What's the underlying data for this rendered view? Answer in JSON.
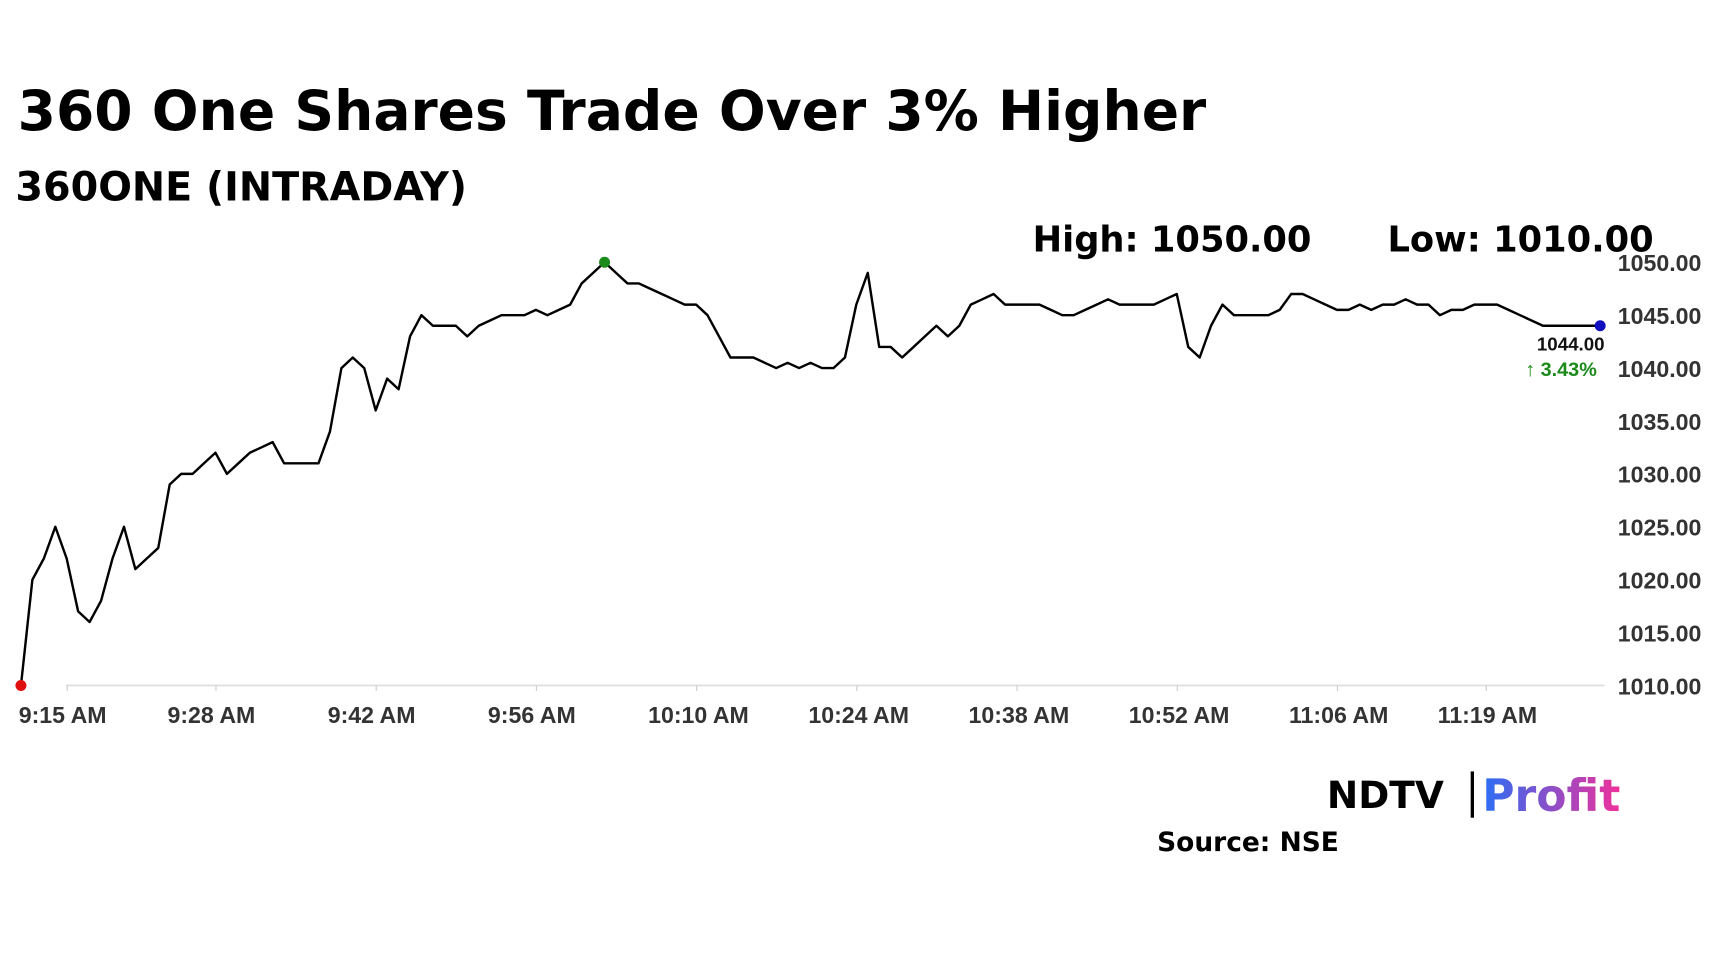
{
  "chart_data": {
    "type": "line",
    "title": "360 One Shares Trade Over 3% Higher",
    "subtitle": "360ONE (INTRADAY)",
    "high_label": "High: 1050.00",
    "low_label": "Low: 1010.00",
    "last_label": "1044.00",
    "change_label": "↑ 3.43%",
    "source": "Source: NSE",
    "logo": [
      "NDTV",
      "Profit"
    ],
    "x": [
      555,
      556,
      557,
      558,
      559,
      560,
      561,
      562,
      563,
      564,
      565,
      566,
      567,
      568,
      569,
      570,
      571,
      572,
      573,
      574,
      575,
      576,
      577,
      578,
      579,
      580,
      581,
      582,
      583,
      584,
      585,
      586,
      587,
      588,
      589,
      590,
      591,
      592,
      593,
      594,
      595,
      596,
      597,
      598,
      599,
      600,
      601,
      602,
      603,
      604,
      605,
      606,
      607,
      608,
      609,
      610,
      611,
      612,
      613,
      614,
      615,
      616,
      617,
      618,
      619,
      620,
      621,
      622,
      623,
      624,
      625,
      626,
      627,
      628,
      629,
      630,
      631,
      632,
      633,
      634,
      635,
      636,
      637,
      638,
      639,
      640,
      641,
      642,
      643,
      644,
      645,
      646,
      647,
      648,
      649,
      650,
      651,
      652,
      653,
      654,
      655,
      656,
      657,
      658,
      659,
      660,
      661,
      662,
      663,
      664,
      665,
      666,
      667,
      668,
      669,
      670,
      671,
      672,
      673,
      674,
      675,
      676,
      677,
      678,
      679,
      680,
      681,
      682,
      683,
      684,
      685,
      686,
      687,
      688,
      689,
      690,
      691,
      692,
      693
    ],
    "series": [
      {
        "color": "#000000",
        "values": [
          1010,
          1020,
          1022,
          1025,
          1022,
          1017,
          1016,
          1018,
          1022,
          1025,
          1021,
          1022,
          1023,
          1029,
          1030,
          1030,
          1031,
          1032,
          1030,
          1031,
          1032,
          1032.5,
          1033,
          1031,
          1031,
          1031,
          1031,
          1034,
          1040,
          1041,
          1040,
          1036,
          1039,
          1038,
          1043,
          1045,
          1044,
          1044,
          1044,
          1043,
          1044,
          1044.5,
          1045,
          1045,
          1045,
          1045.5,
          1045,
          1045.5,
          1046,
          1048,
          1049,
          1050,
          1049,
          1048,
          1048,
          1047.5,
          1047,
          1046.5,
          1046,
          1046,
          1045,
          1043,
          1041,
          1041,
          1041,
          1040.5,
          1040,
          1040.5,
          1040,
          1040.5,
          1040,
          1040,
          1041,
          1046,
          1049,
          1042,
          1042,
          1041,
          1042,
          1043,
          1044,
          1043,
          1044,
          1046,
          1046.5,
          1047,
          1046,
          1046,
          1046,
          1046,
          1045.5,
          1045,
          1045,
          1045.5,
          1046,
          1046.5,
          1046,
          1046,
          1046,
          1046,
          1046.5,
          1047,
          1042,
          1041,
          1044,
          1046,
          1045,
          1045,
          1045,
          1045,
          1045.5,
          1047,
          1047,
          1046.5,
          1046,
          1045.5,
          1045.5,
          1046,
          1045.5,
          1046,
          1046,
          1046.5,
          1046,
          1046,
          1045,
          1045.5,
          1045.5,
          1046,
          1046,
          1046,
          1045.5,
          1045,
          1044.5,
          1044,
          1044,
          1044,
          1044,
          1044,
          1044
        ]
      }
    ],
    "markers": [
      {
        "index": 0,
        "color": "#e01010"
      },
      {
        "index": 51,
        "color": "#1a8a1a"
      },
      {
        "index": 138,
        "color": "#1010c0"
      }
    ],
    "change_color": "#1a8a1a",
    "xlim": [
      555,
      693
    ],
    "xticks": [
      {
        "value": 555,
        "label": "9:15 AM"
      },
      {
        "value": 568,
        "label": "9:28 AM"
      },
      {
        "value": 582,
        "label": "9:42 AM"
      },
      {
        "value": 596,
        "label": "9:56 AM"
      },
      {
        "value": 610,
        "label": "10:10 AM"
      },
      {
        "value": 624,
        "label": "10:24 AM"
      },
      {
        "value": 638,
        "label": "10:38 AM"
      },
      {
        "value": 652,
        "label": "10:52 AM"
      },
      {
        "value": 666,
        "label": "11:06 AM"
      },
      {
        "value": 679,
        "label": "11:19 AM"
      }
    ],
    "ylim": [
      1010,
      1050
    ],
    "yticks": [
      {
        "value": 1010,
        "label": "1010.00"
      },
      {
        "value": 1015,
        "label": "1015.00"
      },
      {
        "value": 1020,
        "label": "1020.00"
      },
      {
        "value": 1025,
        "label": "1025.00"
      },
      {
        "value": 1030,
        "label": "1030.00"
      },
      {
        "value": 1035,
        "label": "1035.00"
      },
      {
        "value": 1040,
        "label": "1040.00"
      },
      {
        "value": 1045,
        "label": "1045.00"
      },
      {
        "value": 1050,
        "label": "1050.00"
      }
    ]
  }
}
